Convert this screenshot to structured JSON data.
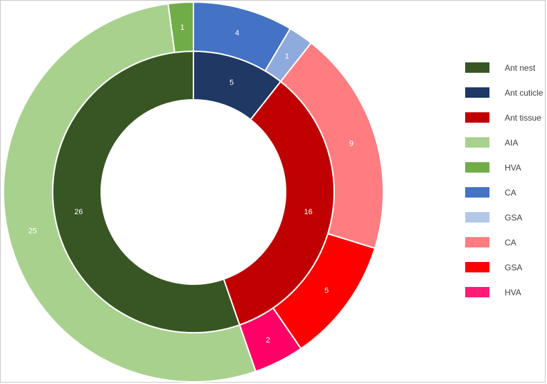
{
  "chart_data": {
    "type": "donut",
    "inner_ring": [
      {
        "label": "Ant cuticle",
        "value": 5,
        "color": "#1f3864"
      },
      {
        "label": "Ant tissue",
        "value": 16,
        "color": "#c00000"
      },
      {
        "label": "Ant nest",
        "value": 26,
        "color": "#375623"
      }
    ],
    "outer_ring": [
      {
        "label": "CA",
        "value": 4,
        "color": "#4472c4"
      },
      {
        "label": "GSA",
        "value": 1,
        "color": "#8faadc"
      },
      {
        "label": "CA",
        "value": 9,
        "color": "#ff7c80"
      },
      {
        "label": "GSA",
        "value": 5,
        "color": "#ff0000"
      },
      {
        "label": "HVA",
        "value": 2,
        "color": "#ff0066"
      },
      {
        "label": "AIA",
        "value": 25,
        "color": "#a9d18e"
      },
      {
        "label": "HVA",
        "value": 1,
        "color": "#70ad47"
      }
    ],
    "legend": [
      {
        "label": "Ant nest",
        "color": "#375623"
      },
      {
        "label": "Ant cuticle",
        "color": "#1f3864"
      },
      {
        "label": "Ant tissue",
        "color": "#c00000"
      },
      {
        "label": "AIA",
        "color": "#a9d18e"
      },
      {
        "label": "HVA",
        "color": "#70ad47"
      },
      {
        "label": "CA",
        "color": "#4472c4"
      },
      {
        "label": "GSA",
        "color": "#b4c7e7"
      },
      {
        "label": "CA",
        "color": "#ff7c80"
      },
      {
        "label": "GSA",
        "color": "#ff0000"
      },
      {
        "label": "HVA",
        "color": "#ff1a75"
      }
    ],
    "legend_position": "right"
  }
}
